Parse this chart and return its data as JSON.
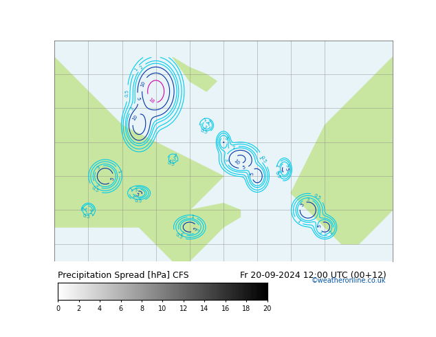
{
  "title": "Precipitation Spread [hPa] CFS",
  "date_label": "Fr 20-09-2024 12:00 UTC (00+12)",
  "credit": "©weatheronline.co.uk",
  "colorbar_min": 0,
  "colorbar_max": 20,
  "colorbar_ticks": [
    0,
    2,
    4,
    6,
    8,
    10,
    12,
    14,
    16,
    18,
    20
  ],
  "colorbar_color_left": "#aaaaaa",
  "colorbar_color_right": "#444444",
  "land_color": "#c8e6a0",
  "ocean_color": "#e8f4f8",
  "grid_color": "#888888",
  "contour_colors": [
    "#00ccff",
    "#0066cc",
    "#cc00cc"
  ],
  "lon_min": -90,
  "lon_max": 10,
  "lat_min": -5,
  "lat_max": 55,
  "lon_ticks": [
    -80,
    -70,
    -60,
    -50,
    -40,
    -30,
    -20,
    -10
  ],
  "lat_ticks": [],
  "bottom_bar_color": "#888888",
  "title_fontsize": 9,
  "tick_fontsize": 7,
  "credit_color": "#0055aa",
  "credit_fontsize": 7
}
